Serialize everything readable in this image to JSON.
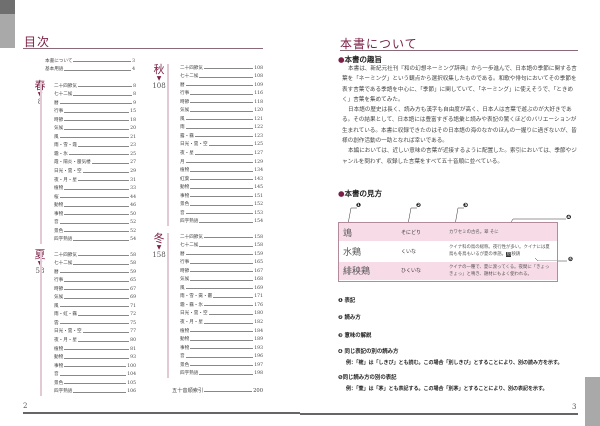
{
  "left_page": {
    "title": "目次",
    "intro": [
      {
        "label": "本書について",
        "page": "3"
      },
      {
        "label": "基本用語",
        "page": "4"
      }
    ],
    "seasons": [
      {
        "key": "spring",
        "label": "春",
        "start": "8",
        "items": [
          {
            "label": "二十四節気",
            "page": "8"
          },
          {
            "label": "七十二候",
            "page": "8"
          },
          {
            "label": "暦",
            "page": "9"
          },
          {
            "label": "行事",
            "page": "15"
          },
          {
            "label": "時節",
            "page": "18"
          },
          {
            "label": "気候",
            "page": "20"
          },
          {
            "label": "風",
            "page": "21"
          },
          {
            "label": "雨・雪・霞",
            "page": "23"
          },
          {
            "label": "霜・氷",
            "page": "25"
          },
          {
            "label": "霞・陽炎・蜃気楼",
            "page": "27"
          },
          {
            "label": "日光・雲・空",
            "page": "29"
          },
          {
            "label": "夜・月・星",
            "page": "31"
          },
          {
            "label": "植物",
            "page": "33"
          },
          {
            "label": "桜",
            "page": "44"
          },
          {
            "label": "動物",
            "page": "46"
          },
          {
            "label": "事物",
            "page": "50"
          },
          {
            "label": "音",
            "page": "52"
          },
          {
            "label": "景色",
            "page": "52"
          },
          {
            "label": "四字熟語",
            "page": "54"
          }
        ]
      },
      {
        "key": "summer",
        "label": "夏",
        "start": "58",
        "items": [
          {
            "label": "二十四節気",
            "page": "58"
          },
          {
            "label": "七十二候",
            "page": "58"
          },
          {
            "label": "暦",
            "page": "59"
          },
          {
            "label": "行事",
            "page": "65"
          },
          {
            "label": "時節",
            "page": "67"
          },
          {
            "label": "気候",
            "page": "69"
          },
          {
            "label": "風",
            "page": "71"
          },
          {
            "label": "雨・虹・霧",
            "page": "72"
          },
          {
            "label": "雲",
            "page": "75"
          },
          {
            "label": "日光・雲・空",
            "page": "77"
          },
          {
            "label": "夜・月・星",
            "page": "80"
          },
          {
            "label": "植物",
            "page": "81"
          },
          {
            "label": "動物",
            "page": "93"
          },
          {
            "label": "事物",
            "page": "100"
          },
          {
            "label": "音",
            "page": "104"
          },
          {
            "label": "景色",
            "page": "105"
          },
          {
            "label": "四字熟語",
            "page": "106"
          }
        ]
      },
      {
        "key": "autumn",
        "label": "秋",
        "start": "108",
        "items": [
          {
            "label": "二十四節気",
            "page": "108"
          },
          {
            "label": "七十二候",
            "page": "108"
          },
          {
            "label": "暦",
            "page": "109"
          },
          {
            "label": "行事",
            "page": "116"
          },
          {
            "label": "時節",
            "page": "118"
          },
          {
            "label": "気候",
            "page": "120"
          },
          {
            "label": "風",
            "page": "121"
          },
          {
            "label": "雨",
            "page": "122"
          },
          {
            "label": "露・霧",
            "page": "123"
          },
          {
            "label": "日光・雲・空",
            "page": "125"
          },
          {
            "label": "夜・星",
            "page": "127"
          },
          {
            "label": "月",
            "page": "129"
          },
          {
            "label": "植物",
            "page": "134"
          },
          {
            "label": "紅葉",
            "page": "143"
          },
          {
            "label": "動物",
            "page": "145"
          },
          {
            "label": "事物",
            "page": "151"
          },
          {
            "label": "景色",
            "page": "152"
          },
          {
            "label": "音",
            "page": "153"
          },
          {
            "label": "四字熟語",
            "page": "154"
          }
        ]
      },
      {
        "key": "winter",
        "label": "冬",
        "start": "158",
        "items": [
          {
            "label": "二十四節気",
            "page": "158"
          },
          {
            "label": "七十二候",
            "page": "158"
          },
          {
            "label": "暦",
            "page": "159"
          },
          {
            "label": "行事",
            "page": "165"
          },
          {
            "label": "時節",
            "page": "167"
          },
          {
            "label": "気候",
            "page": "168"
          },
          {
            "label": "風",
            "page": "169"
          },
          {
            "label": "雨・雪・霙・霰",
            "page": "171"
          },
          {
            "label": "霜・霧・氷",
            "page": "176"
          },
          {
            "label": "日光・雲・空",
            "page": "180"
          },
          {
            "label": "夜・月・星",
            "page": "182"
          },
          {
            "label": "植物",
            "page": "184"
          },
          {
            "label": "動物",
            "page": "189"
          },
          {
            "label": "事物",
            "page": "193"
          },
          {
            "label": "音",
            "page": "196"
          },
          {
            "label": "景色",
            "page": "197"
          },
          {
            "label": "四字熟語",
            "page": "198"
          }
        ]
      }
    ],
    "index": {
      "label": "五十音順索引",
      "page": "200"
    },
    "page_number": "2"
  },
  "right_page": {
    "title": "本書について",
    "section1": {
      "heading": "本書の趣旨",
      "paragraphs": [
        "本書は、新紀元社刊『和の幻想ネーミング辞典』から一歩進んで、日本語の季節に関する言葉を「ネーミング」という観点から選択収集したものである。和歌や俳句においてその季節を表す言葉である季語を中心に、「季節」に関していて、「ネーミング」に使えそうで、「ときめく」言葉を集めてみた。",
        "日本語の歴史は長く、読み方も漢字も自由度が高く、日本人は言葉で遊ぶのが大好きである。その結果として、日本語には豊富すぎる語彙と読みや表記の驚くほどのバリエーションが生まれている。本書に収録できたのはその日本語の海のなかのほんの一握りに過ぎないが、皆様の創作活動の一助となれば幸いである。",
        "本編においては、近しい意味の言葉が近接するように配置した。索引においては、季節やジャンルを問わず、収録した言葉をすべて五十音順に並べている。"
      ]
    },
    "section2": {
      "heading": "本書の見方",
      "callouts": [
        "❶",
        "❷",
        "❸",
        "❹",
        "❺"
      ],
      "rows": [
        {
          "word": "鴗",
          "reading": "そにどり",
          "desc": "カワセミの古名。翠 そに"
        },
        {
          "word": "水鶏",
          "reading": "くいな",
          "desc": "クイナ科の鳥の総称。夜行性が多い。クイナには夏鳥も冬鳥もいるが夏の季語。",
          "tag": "別",
          "alt": "秧鶏"
        },
        {
          "word": "緋秧鶏",
          "reading": "ひくいな",
          "desc": "クイナの一種で、夏に渡ってくる。夜間に「きょっきょっ」と鳴き、題材にもよく使われる。"
        }
      ],
      "legend": [
        {
          "num": "❶",
          "label": "表記"
        },
        {
          "num": "❷",
          "label": "読み方"
        },
        {
          "num": "❸",
          "label": "意味の解説"
        },
        {
          "num": "❹",
          "label": "同じ表記の別の読み方",
          "example": "例：「樒」は「しきび」とも読む。この場合「別しきび」とすることにより、別の読み方を示す。"
        },
        {
          "num": "❺",
          "label": "同じ読み方の別の表記",
          "example": "例：「萱」は「茅」とも表記する。この場合「別茅」とすることにより、別の表記を示す。"
        }
      ]
    },
    "page_number": "3"
  },
  "colors": {
    "accent": "#7a1f45",
    "table_pink": "#f7dbe6",
    "tab_gray": "#a9a9a9"
  }
}
